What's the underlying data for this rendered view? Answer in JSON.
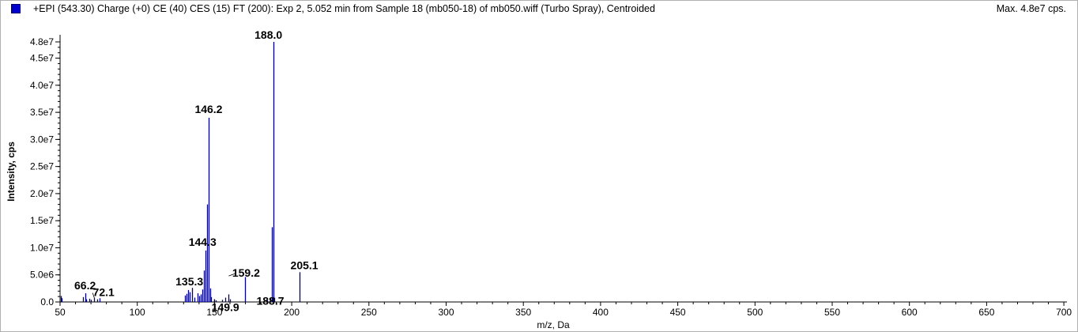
{
  "header": {
    "title": "+EPI (543.30) Charge (+0) CE (40) CES (15) FT (200): Exp 2, 5.052 min from Sample 18 (mb050-18) of mb050.wiff (Turbo Spray), Centroided",
    "max": "Max. 4.8e7 cps."
  },
  "colors": {
    "series": "#00008b",
    "swatch": "#0000cc"
  },
  "chart_data": {
    "type": "bar",
    "title": "+EPI (543.30) Charge (+0) CE (40) CES (15) FT (200): Exp 2, 5.052 min from Sample 18 (mb050-18) of mb050.wiff (Turbo Spray), Centroided",
    "xlabel": "m/z, Da",
    "ylabel": "Intensity, cps",
    "xlim": [
      50,
      702
    ],
    "ylim": [
      0,
      48200000
    ],
    "grid": false,
    "x_ticks": [
      {
        "v": 50,
        "label": "50"
      },
      {
        "v": 100,
        "label": "100"
      },
      {
        "v": 150,
        "label": "150"
      },
      {
        "v": 200,
        "label": "200"
      },
      {
        "v": 250,
        "label": "250"
      },
      {
        "v": 300,
        "label": "300"
      },
      {
        "v": 350,
        "label": "350"
      },
      {
        "v": 400,
        "label": "400"
      },
      {
        "v": 450,
        "label": "450"
      },
      {
        "v": 500,
        "label": "500"
      },
      {
        "v": 550,
        "label": "550"
      },
      {
        "v": 600,
        "label": "600"
      },
      {
        "v": 650,
        "label": "650"
      },
      {
        "v": 700,
        "label": "700"
      }
    ],
    "y_ticks": [
      {
        "v": 0,
        "label": "0.0"
      },
      {
        "v": 5000000,
        "label": "5.0e6"
      },
      {
        "v": 10000000,
        "label": "1.0e7"
      },
      {
        "v": 15000000,
        "label": "1.5e7"
      },
      {
        "v": 20000000,
        "label": "2.0e7"
      },
      {
        "v": 25000000,
        "label": "2.5e7"
      },
      {
        "v": 30000000,
        "label": "3.0e7"
      },
      {
        "v": 35000000,
        "label": "3.5e7"
      },
      {
        "v": 40000000,
        "label": "4.0e7"
      },
      {
        "v": 45000000,
        "label": "4.5e7"
      },
      {
        "v": 48000000,
        "label": "4.8e7"
      }
    ],
    "peaks": [
      {
        "mz": 50.3,
        "y": 1100000
      },
      {
        "mz": 51.0,
        "y": 700000
      },
      {
        "mz": 65.0,
        "y": 900000
      },
      {
        "mz": 66.2,
        "y": 1600000
      },
      {
        "mz": 67.0,
        "y": 500000
      },
      {
        "mz": 69.0,
        "y": 600000
      },
      {
        "mz": 70.0,
        "y": 400000
      },
      {
        "mz": 72.1,
        "y": 800000
      },
      {
        "mz": 74.0,
        "y": 500000
      },
      {
        "mz": 75.5,
        "y": 700000
      },
      {
        "mz": 131.0,
        "y": 1200000
      },
      {
        "mz": 132.0,
        "y": 1500000
      },
      {
        "mz": 133.0,
        "y": 2200000
      },
      {
        "mz": 134.0,
        "y": 1800000
      },
      {
        "mz": 135.3,
        "y": 2600000
      },
      {
        "mz": 137.0,
        "y": 800000
      },
      {
        "mz": 139.0,
        "y": 1600000
      },
      {
        "mz": 140.0,
        "y": 1100000
      },
      {
        "mz": 141.0,
        "y": 1400000
      },
      {
        "mz": 142.0,
        "y": 2300000
      },
      {
        "mz": 143.0,
        "y": 5800000
      },
      {
        "mz": 144.3,
        "y": 9500000
      },
      {
        "mz": 145.0,
        "y": 18000000
      },
      {
        "mz": 146.2,
        "y": 34000000
      },
      {
        "mz": 147.0,
        "y": 2500000
      },
      {
        "mz": 148.0,
        "y": 900000
      },
      {
        "mz": 149.9,
        "y": 500000
      },
      {
        "mz": 151.0,
        "y": 300000
      },
      {
        "mz": 155.0,
        "y": 400000
      },
      {
        "mz": 157.0,
        "y": 800000
      },
      {
        "mz": 159.2,
        "y": 1400000
      },
      {
        "mz": 160.0,
        "y": 500000
      },
      {
        "mz": 170.0,
        "y": 4600000
      },
      {
        "mz": 184.0,
        "y": 300000
      },
      {
        "mz": 186.0,
        "y": 600000
      },
      {
        "mz": 187.0,
        "y": 13800000
      },
      {
        "mz": 188.0,
        "y": 48000000
      },
      {
        "mz": 188.7,
        "y": 800000
      },
      {
        "mz": 205.1,
        "y": 5500000
      }
    ],
    "annotations": [
      {
        "text": "188.0",
        "mz": 188.0,
        "y": 48000000
      },
      {
        "text": "146.2",
        "mz": 146.2,
        "y": 34000000
      },
      {
        "text": "144.3",
        "mz": 144.3,
        "y": 9500000
      },
      {
        "text": "205.1",
        "mz": 205.1,
        "y": 5500000
      },
      {
        "text": "159.2",
        "mz": 159.2,
        "y": 4800000
      },
      {
        "text": "135.3",
        "mz": 135.3,
        "y": 2600000
      },
      {
        "text": "66.2",
        "mz": 66.2,
        "y": 1600000
      },
      {
        "text": "72.1",
        "mz": 72.1,
        "y": 800000
      },
      {
        "text": "149.9",
        "mz": 149.9,
        "y": 500000
      },
      {
        "text": "188.7",
        "mz": 188.7,
        "y": 800000
      }
    ]
  }
}
